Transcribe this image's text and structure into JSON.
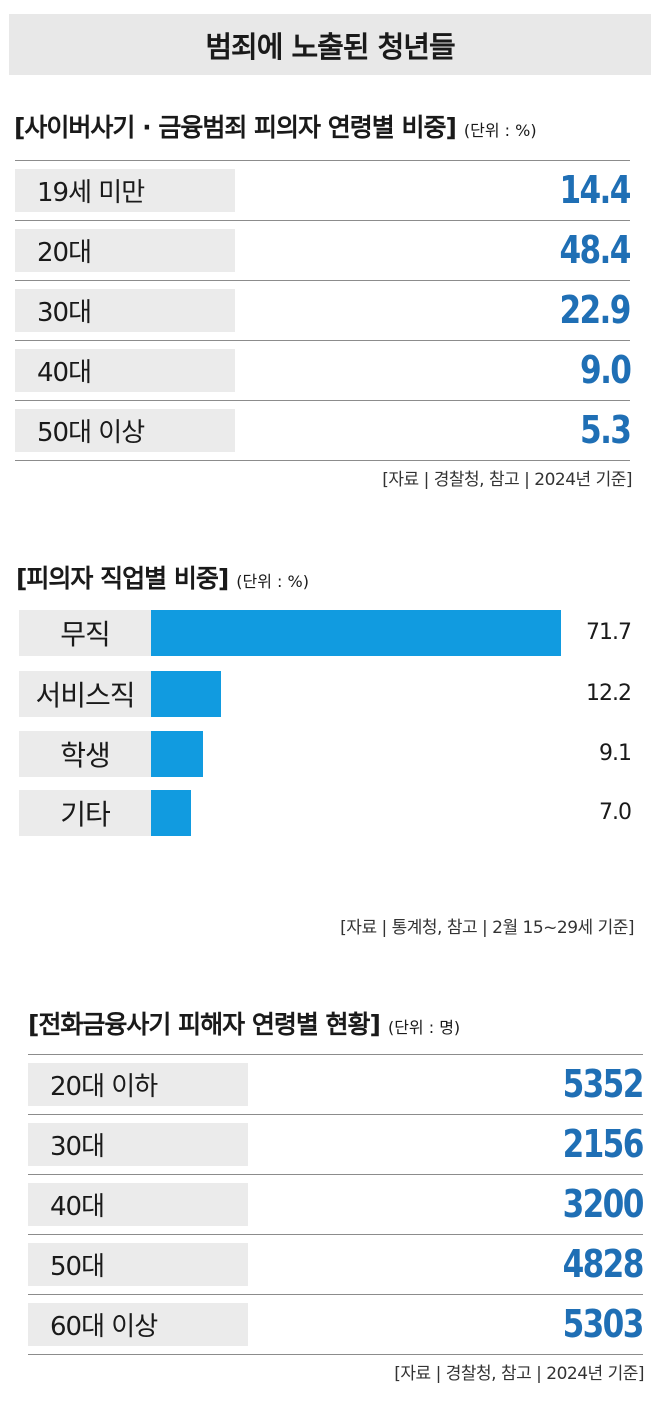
{
  "title": "범죄에 노출된 청년들",
  "chart_data": [
    {
      "type": "table",
      "title": "[사이버사기 · 금융범죄 피의자 연령별 비중]",
      "unit": "(단위 : %)",
      "categories": [
        "19세 미만",
        "20대",
        "30대",
        "40대",
        "50대 이상"
      ],
      "values": [
        "14.4",
        "48.4",
        "22.9",
        "9.0",
        "5.3"
      ],
      "source": "[자료 | 경찰청, 참고 | 2024년 기준]"
    },
    {
      "type": "bar",
      "title": "[피의자 직업별 비중]",
      "unit": "(단위 : %)",
      "categories": [
        "무직",
        "서비스직",
        "학생",
        "기타"
      ],
      "values": [
        71.7,
        12.2,
        9.1,
        7.0
      ],
      "value_labels": [
        "71.7",
        "12.2",
        "9.1",
        "7.0"
      ],
      "source": "[자료 | 통계청, 참고 | 2월 15~29세 기준]",
      "bar_color": "#119be0"
    },
    {
      "type": "table",
      "title": "[전화금융사기 피해자 연령별 현황]",
      "unit": "(단위 : 명)",
      "categories": [
        "20대 이하",
        "30대",
        "40대",
        "50대",
        "60대 이상"
      ],
      "values": [
        "5352",
        "2156",
        "3200",
        "4828",
        "5303"
      ],
      "source": "[자료 | 경찰청, 참고 | 2024년 기준]"
    }
  ]
}
